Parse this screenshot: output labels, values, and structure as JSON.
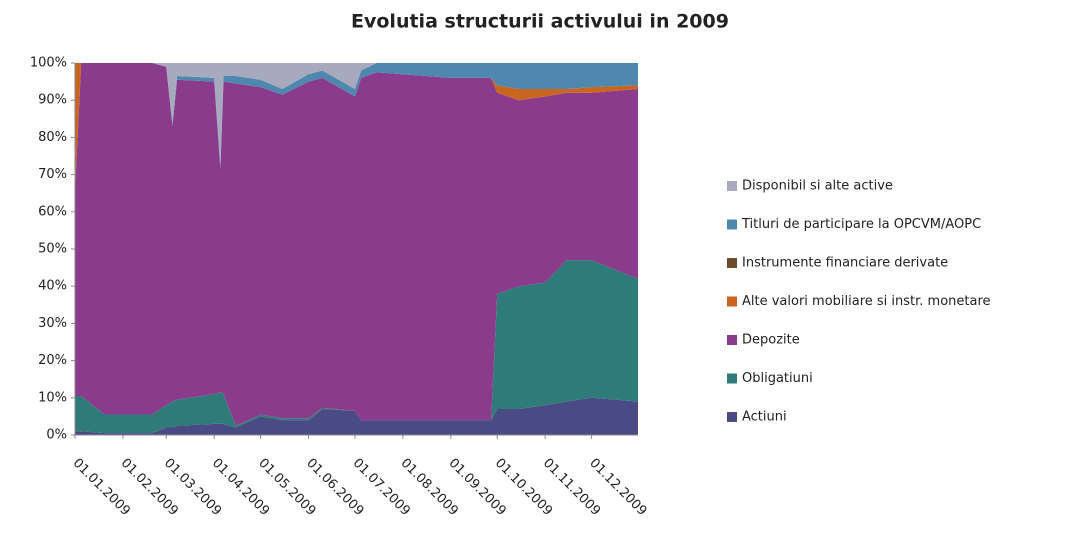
{
  "chart_data": {
    "type": "stacked_area",
    "title": "Evolutia structurii activului in 2009",
    "x": [
      "01.01.2009",
      "05.01.2009",
      "20.01.2009",
      "20.02.2009",
      "01.03.2009",
      "05.03.2009",
      "08.03.2009",
      "01.04.2009",
      "05.04.2009",
      "07.04.2009",
      "15.04.2009",
      "01.05.2009",
      "15.05.2009",
      "01.06.2009",
      "10.06.2009",
      "01.07.2009",
      "05.07.2009",
      "15.07.2009",
      "01.09.2009",
      "27.09.2009",
      "01.10.2009",
      "15.10.2009",
      "01.11.2009",
      "15.11.2009",
      "01.12.2009",
      "31.12.2009"
    ],
    "xlim": [
      "01.01.2009",
      "31.12.2009"
    ],
    "xticks": [
      "01.01.2009",
      "01.02.2009",
      "01.03.2009",
      "01.04.2009",
      "01.05.2009",
      "01.06.2009",
      "01.07.2009",
      "01.08.2009",
      "01.09.2009",
      "01.10.2009",
      "01.11.2009",
      "01.12.2009"
    ],
    "ylim": [
      0,
      100
    ],
    "yticks": [
      {
        "value": 0,
        "label": "0%"
      },
      {
        "value": 10,
        "label": "10%"
      },
      {
        "value": 20,
        "label": "20%"
      },
      {
        "value": 30,
        "label": "30%"
      },
      {
        "value": 40,
        "label": "40%"
      },
      {
        "value": 50,
        "label": "50%"
      },
      {
        "value": 60,
        "label": "60%"
      },
      {
        "value": 70,
        "label": "70%"
      },
      {
        "value": 80,
        "label": "80%"
      },
      {
        "value": 90,
        "label": "90%"
      },
      {
        "value": 100,
        "label": "100%"
      }
    ],
    "series": [
      {
        "name": "Actiuni",
        "color": "#4a4a84",
        "values": [
          1,
          1,
          0.5,
          0.5,
          2,
          2,
          2.5,
          3,
          3,
          3,
          2,
          5,
          4,
          4,
          7,
          6.5,
          4,
          4,
          4,
          4,
          7,
          7,
          8,
          9,
          10,
          9
        ]
      },
      {
        "name": "Obligatiuni",
        "color": "#2f7b79",
        "values": [
          9.5,
          9.5,
          5,
          5,
          6,
          7,
          7,
          8,
          8.5,
          8,
          0.5,
          0.5,
          0.5,
          0.5,
          0.3,
          0,
          0,
          0,
          0,
          0,
          31,
          33,
          33,
          38,
          37,
          33
        ]
      },
      {
        "name": "Depozite",
        "color": "#8b3b8c",
        "values": [
          55,
          89.5,
          94.5,
          94.5,
          91,
          74,
          86,
          84,
          60,
          84,
          92,
          88,
          87,
          90.5,
          88.7,
          84.5,
          92,
          93.5,
          92,
          92,
          54,
          50,
          50,
          45,
          45,
          51
        ]
      },
      {
        "name": "Alte valori mobiliare si instr. monetare",
        "color": "#c8651f",
        "values": [
          34.5,
          0,
          0,
          0,
          0,
          0,
          0,
          0,
          0,
          0,
          0,
          0,
          0,
          0,
          0,
          0,
          0,
          0,
          0,
          0,
          2,
          3,
          2,
          1,
          1.5,
          1
        ]
      },
      {
        "name": "Instrumente financiare derivate",
        "color": "#6b4a2e",
        "values": [
          0,
          0,
          0,
          0,
          0,
          0,
          0,
          0,
          0,
          0,
          0,
          0,
          0,
          0,
          0,
          0,
          0,
          0,
          0,
          0,
          0,
          0,
          0,
          0,
          0,
          0
        ]
      },
      {
        "name": "Titluri de participare la OPCVM/AOPC",
        "color": "#4f88ae",
        "values": [
          0,
          0,
          0,
          0,
          0,
          1,
          1,
          1,
          1,
          1.5,
          2,
          2,
          1.5,
          2,
          2,
          2,
          2,
          2.5,
          4,
          4,
          6,
          7,
          7,
          7,
          6.5,
          6
        ]
      },
      {
        "name": "Disponibil si alte active",
        "color": "#a9a9bd",
        "values": [
          0,
          0,
          0,
          0,
          1,
          16,
          3.5,
          4,
          27.5,
          3.5,
          3.5,
          4.5,
          7,
          3,
          2,
          7,
          2,
          0,
          0,
          0,
          0,
          0,
          0,
          0,
          0,
          0
        ]
      }
    ]
  }
}
